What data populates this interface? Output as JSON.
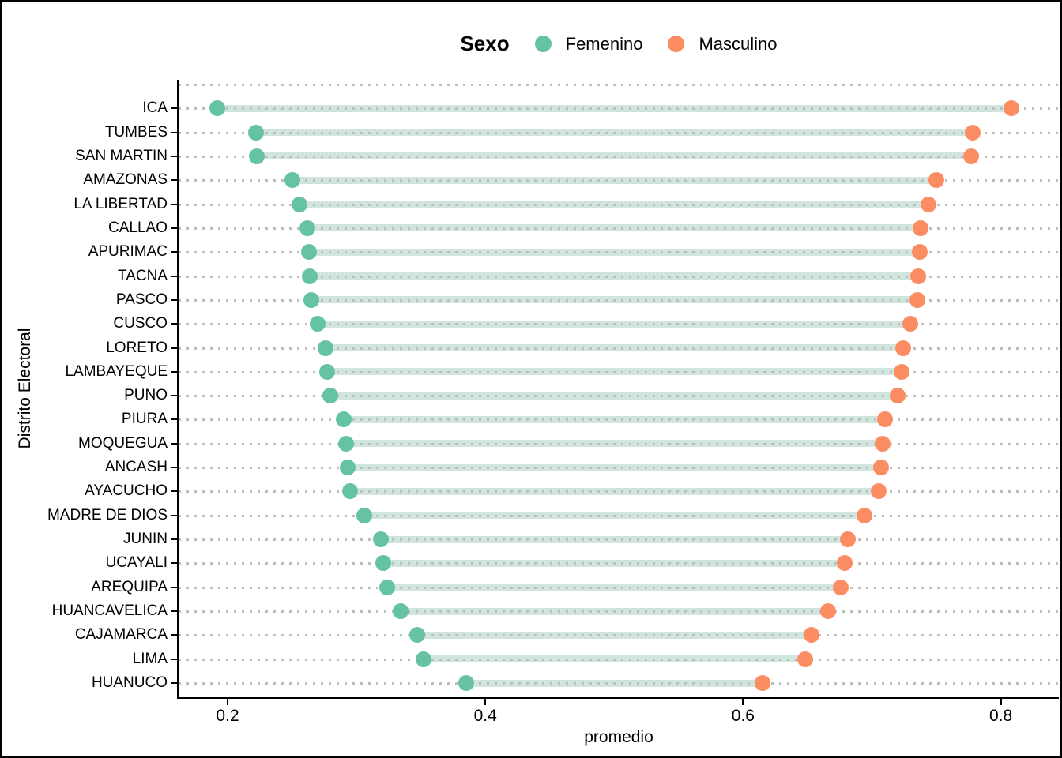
{
  "figure": {
    "background": "#FFFFFF",
    "border_color": "#000000",
    "text_color": "#000000"
  },
  "legend": {
    "title": "Sexo",
    "items": [
      {
        "label": "Femenino",
        "color": "#66C2A5"
      },
      {
        "label": "Masculino",
        "color": "#FC8D62"
      }
    ]
  },
  "chart_data": {
    "type": "scatter",
    "subtype": "dumbbell",
    "title": "",
    "xlabel": "promedio",
    "ylabel": "Distrito Electoral",
    "xlim": [
      0.162,
      0.845
    ],
    "xticks": [
      0.2,
      0.4,
      0.6,
      0.8
    ],
    "xtick_labels": [
      "0.2",
      "0.4",
      "0.6",
      "0.8"
    ],
    "grid": "dotted horizontal",
    "grid_color": "#BDBDBD",
    "axis_color": "#000000",
    "connector_color": "#CFE5DE",
    "legend_position": "top",
    "categories": [
      "ICA",
      "TUMBES",
      "SAN MARTIN",
      "AMAZONAS",
      "LA LIBERTAD",
      "CALLAO",
      "APURIMAC",
      "TACNA",
      "PASCO",
      "CUSCO",
      "LORETO",
      "LAMBAYEQUE",
      "PUNO",
      "PIURA",
      "MOQUEGUA",
      "ANCASH",
      "AYACUCHO",
      "MADRE DE DIOS",
      "JUNIN",
      "UCAYALI",
      "AREQUIPA",
      "HUANCAVELICA",
      "CAJAMARCA",
      "LIMA",
      "HUANUCO"
    ],
    "series": [
      {
        "name": "Femenino",
        "color": "#66C2A5",
        "values": [
          0.192,
          0.222,
          0.223,
          0.25,
          0.256,
          0.262,
          0.263,
          0.264,
          0.265,
          0.27,
          0.276,
          0.277,
          0.28,
          0.29,
          0.292,
          0.293,
          0.295,
          0.306,
          0.319,
          0.321,
          0.324,
          0.334,
          0.347,
          0.352,
          0.385
        ]
      },
      {
        "name": "Masculino",
        "color": "#FC8D62",
        "values": [
          0.808,
          0.778,
          0.777,
          0.75,
          0.744,
          0.738,
          0.737,
          0.736,
          0.735,
          0.73,
          0.724,
          0.723,
          0.72,
          0.71,
          0.708,
          0.707,
          0.705,
          0.694,
          0.681,
          0.679,
          0.676,
          0.666,
          0.653,
          0.648,
          0.615
        ]
      }
    ]
  }
}
